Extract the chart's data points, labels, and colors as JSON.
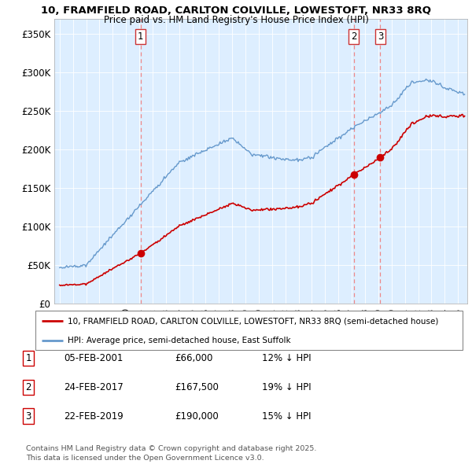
{
  "title_line1": "10, FRAMFIELD ROAD, CARLTON COLVILLE, LOWESTOFT, NR33 8RQ",
  "title_line2": "Price paid vs. HM Land Registry's House Price Index (HPI)",
  "background_color": "#ffffff",
  "plot_bg_color": "#ddeeff",
  "grid_color": "#ffffff",
  "sale_color": "#cc0000",
  "hpi_color": "#6699cc",
  "dashed_line_color": "#ee8888",
  "sales": [
    {
      "date_num": 2001.1,
      "price": 66000,
      "label": "1"
    },
    {
      "date_num": 2017.15,
      "price": 167500,
      "label": "2"
    },
    {
      "date_num": 2019.15,
      "price": 190000,
      "label": "3"
    }
  ],
  "legend_sale_label": "10, FRAMFIELD ROAD, CARLTON COLVILLE, LOWESTOFT, NR33 8RQ (semi-detached house)",
  "legend_hpi_label": "HPI: Average price, semi-detached house, East Suffolk",
  "table_data": [
    [
      "1",
      "05-FEB-2001",
      "£66,000",
      "12% ↓ HPI"
    ],
    [
      "2",
      "24-FEB-2017",
      "£167,500",
      "19% ↓ HPI"
    ],
    [
      "3",
      "22-FEB-2019",
      "£190,000",
      "15% ↓ HPI"
    ]
  ],
  "footer": "Contains HM Land Registry data © Crown copyright and database right 2025.\nThis data is licensed under the Open Government Licence v3.0.",
  "ylim": [
    0,
    370000
  ],
  "xlim_start": 1994.6,
  "xlim_end": 2025.7,
  "yticks": [
    0,
    50000,
    100000,
    150000,
    200000,
    250000,
    300000,
    350000
  ],
  "ytick_labels": [
    "£0",
    "£50K",
    "£100K",
    "£150K",
    "£200K",
    "£250K",
    "£300K",
    "£350K"
  ]
}
